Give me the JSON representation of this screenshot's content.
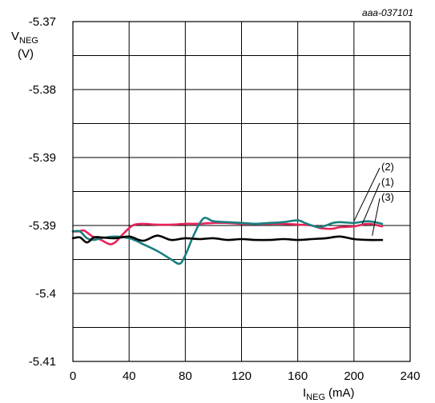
{
  "chart_data": {
    "type": "line",
    "title": "",
    "doc_id": "aaa-037101",
    "ylabel_main": "V",
    "ylabel_sub": "NEG",
    "ylabel_unit": "(V)",
    "xlabel_main": "I",
    "xlabel_sub": "NEG",
    "xlabel_unit": "(mA)",
    "xlim": [
      0,
      240
    ],
    "ylim": [
      -5.41,
      -5.37
    ],
    "x_ticks": [
      0,
      40,
      80,
      120,
      160,
      200,
      240
    ],
    "x_tick_labels": [
      "0",
      "40",
      "80",
      "120",
      "160",
      "200",
      "240"
    ],
    "y_tick_labels": [
      "-5.37",
      "-5.38",
      "-5.39",
      "-5.39",
      "-5.4",
      "-5.41"
    ],
    "grid": true,
    "series": [
      {
        "name": "(1)",
        "color": "#e8235a",
        "x": [
          0,
          4,
          8,
          14,
          20,
          26,
          30,
          34,
          40,
          44,
          50,
          60,
          70,
          80,
          90,
          100,
          110,
          120,
          130,
          140,
          150,
          160,
          170,
          176,
          184,
          190,
          200,
          210,
          220
        ],
        "y": [
          -5.3947,
          -5.3947,
          -5.3946,
          -5.3953,
          -5.3957,
          -5.3962,
          -5.396,
          -5.3953,
          -5.3943,
          -5.3939,
          -5.3938,
          -5.3939,
          -5.3939,
          -5.3938,
          -5.3938,
          -5.3937,
          -5.3937,
          -5.3938,
          -5.3938,
          -5.3938,
          -5.3938,
          -5.3939,
          -5.394,
          -5.3943,
          -5.3944,
          -5.3942,
          -5.3941,
          -5.3938,
          -5.3941
        ]
      },
      {
        "name": "(2)",
        "color": "#1a7f80",
        "x": [
          0,
          5,
          10,
          15,
          20,
          30,
          40,
          45,
          50,
          60,
          70,
          76,
          80,
          85,
          90,
          94,
          100,
          110,
          120,
          130,
          140,
          150,
          160,
          165,
          170,
          175,
          180,
          185,
          190,
          200,
          210,
          220
        ],
        "y": [
          -5.3947,
          -5.3947,
          -5.3955,
          -5.3957,
          -5.3955,
          -5.3953,
          -5.3955,
          -5.3958,
          -5.3962,
          -5.397,
          -5.398,
          -5.3985,
          -5.3975,
          -5.3955,
          -5.3938,
          -5.3931,
          -5.3935,
          -5.3936,
          -5.3937,
          -5.3938,
          -5.3937,
          -5.3936,
          -5.3934,
          -5.3937,
          -5.394,
          -5.3942,
          -5.394,
          -5.3937,
          -5.3936,
          -5.3937,
          -5.3935,
          -5.3938
        ]
      },
      {
        "name": "(3)",
        "color": "#000000",
        "x": [
          0,
          5,
          10,
          15,
          20,
          30,
          40,
          50,
          60,
          70,
          80,
          90,
          100,
          110,
          120,
          130,
          140,
          150,
          160,
          170,
          180,
          190,
          200,
          210,
          220
        ],
        "y": [
          -5.3955,
          -5.3954,
          -5.396,
          -5.3954,
          -5.3954,
          -5.3955,
          -5.3953,
          -5.3958,
          -5.3952,
          -5.3957,
          -5.3955,
          -5.3956,
          -5.3955,
          -5.3957,
          -5.3956,
          -5.3957,
          -5.3957,
          -5.3956,
          -5.3957,
          -5.3956,
          -5.3955,
          -5.3953,
          -5.3956,
          -5.3957,
          -5.3957
        ]
      }
    ],
    "annotations": [
      {
        "label": "(2)",
        "tip_x": 200,
        "tip_y": -5.3935
      },
      {
        "label": "(1)",
        "tip_x": 206,
        "tip_y": -5.3938
      },
      {
        "label": "(3)",
        "tip_x": 213,
        "tip_y": -5.3952
      }
    ]
  }
}
